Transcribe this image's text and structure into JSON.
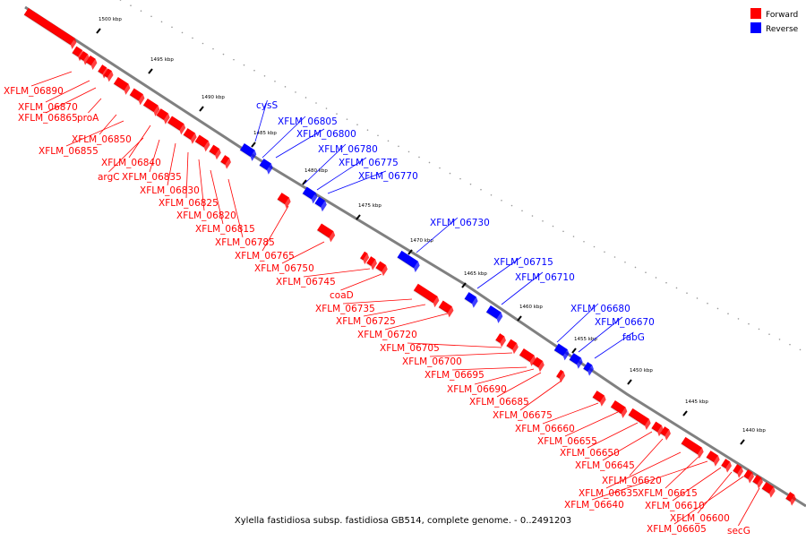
{
  "caption": "Xylella fastidiosa subsp. fastidiosa GB514, complete genome. - 0..2491203",
  "legend": [
    {
      "label": "Forward",
      "color": "#ff0000"
    },
    {
      "label": "Reverse",
      "color": "#0000ff"
    }
  ],
  "colors": {
    "forward": "#ff0000",
    "reverse": "#0000ff",
    "backbone": "#808080"
  },
  "ticks": [
    "1500 kbp",
    "1495 kbp",
    "1490 kbp",
    "1485 kbp",
    "1480 kbp",
    "1475 kbp",
    "1470 kbp",
    "1465 kbp",
    "1460 kbp",
    "1455 kbp",
    "1450 kbp",
    "1445 kbp",
    "1440 kbp"
  ],
  "genes": [
    {
      "name": "XFLM_06890",
      "strand": "forward"
    },
    {
      "name": "XFLM_06870",
      "strand": "forward"
    },
    {
      "name": "XFLM_06865",
      "strand": "forward"
    },
    {
      "name": "proA",
      "strand": "forward"
    },
    {
      "name": "XFLM_06850",
      "strand": "forward"
    },
    {
      "name": "XFLM_06855",
      "strand": "forward"
    },
    {
      "name": "XFLM_06840",
      "strand": "forward"
    },
    {
      "name": "argC",
      "strand": "forward"
    },
    {
      "name": "XFLM_06835",
      "strand": "forward"
    },
    {
      "name": "XFLM_06830",
      "strand": "forward"
    },
    {
      "name": "XFLM_06825",
      "strand": "forward"
    },
    {
      "name": "XFLM_06820",
      "strand": "forward"
    },
    {
      "name": "XFLM_06815",
      "strand": "forward"
    },
    {
      "name": "XFLM_06785",
      "strand": "forward"
    },
    {
      "name": "XFLM_06765",
      "strand": "forward"
    },
    {
      "name": "XFLM_06750",
      "strand": "forward"
    },
    {
      "name": "XFLM_06745",
      "strand": "forward"
    },
    {
      "name": "coaD",
      "strand": "forward"
    },
    {
      "name": "XFLM_06735",
      "strand": "forward"
    },
    {
      "name": "XFLM_06725",
      "strand": "forward"
    },
    {
      "name": "XFLM_06720",
      "strand": "forward"
    },
    {
      "name": "XFLM_06705",
      "strand": "forward"
    },
    {
      "name": "XFLM_06700",
      "strand": "forward"
    },
    {
      "name": "XFLM_06695",
      "strand": "forward"
    },
    {
      "name": "XFLM_06690",
      "strand": "forward"
    },
    {
      "name": "XFLM_06685",
      "strand": "forward"
    },
    {
      "name": "XFLM_06675",
      "strand": "forward"
    },
    {
      "name": "XFLM_06660",
      "strand": "forward"
    },
    {
      "name": "XFLM_06655",
      "strand": "forward"
    },
    {
      "name": "XFLM_06650",
      "strand": "forward"
    },
    {
      "name": "XFLM_06645",
      "strand": "forward"
    },
    {
      "name": "XFLM_06620",
      "strand": "forward"
    },
    {
      "name": "XFLM_06635",
      "strand": "forward"
    },
    {
      "name": "XFLM_06615",
      "strand": "forward"
    },
    {
      "name": "XFLM_06640",
      "strand": "forward"
    },
    {
      "name": "XFLM_06610",
      "strand": "forward"
    },
    {
      "name": "XFLM_06600",
      "strand": "forward"
    },
    {
      "name": "XFLM_06605",
      "strand": "forward"
    },
    {
      "name": "secG",
      "strand": "forward"
    },
    {
      "name": "cysS",
      "strand": "reverse"
    },
    {
      "name": "XFLM_06805",
      "strand": "reverse"
    },
    {
      "name": "XFLM_06800",
      "strand": "reverse"
    },
    {
      "name": "XFLM_06780",
      "strand": "reverse"
    },
    {
      "name": "XFLM_06775",
      "strand": "reverse"
    },
    {
      "name": "XFLM_06770",
      "strand": "reverse"
    },
    {
      "name": "XFLM_06730",
      "strand": "reverse"
    },
    {
      "name": "XFLM_06715",
      "strand": "reverse"
    },
    {
      "name": "XFLM_06710",
      "strand": "reverse"
    },
    {
      "name": "XFLM_06680",
      "strand": "reverse"
    },
    {
      "name": "XFLM_06670",
      "strand": "reverse"
    },
    {
      "name": "fabG",
      "strand": "reverse"
    }
  ]
}
